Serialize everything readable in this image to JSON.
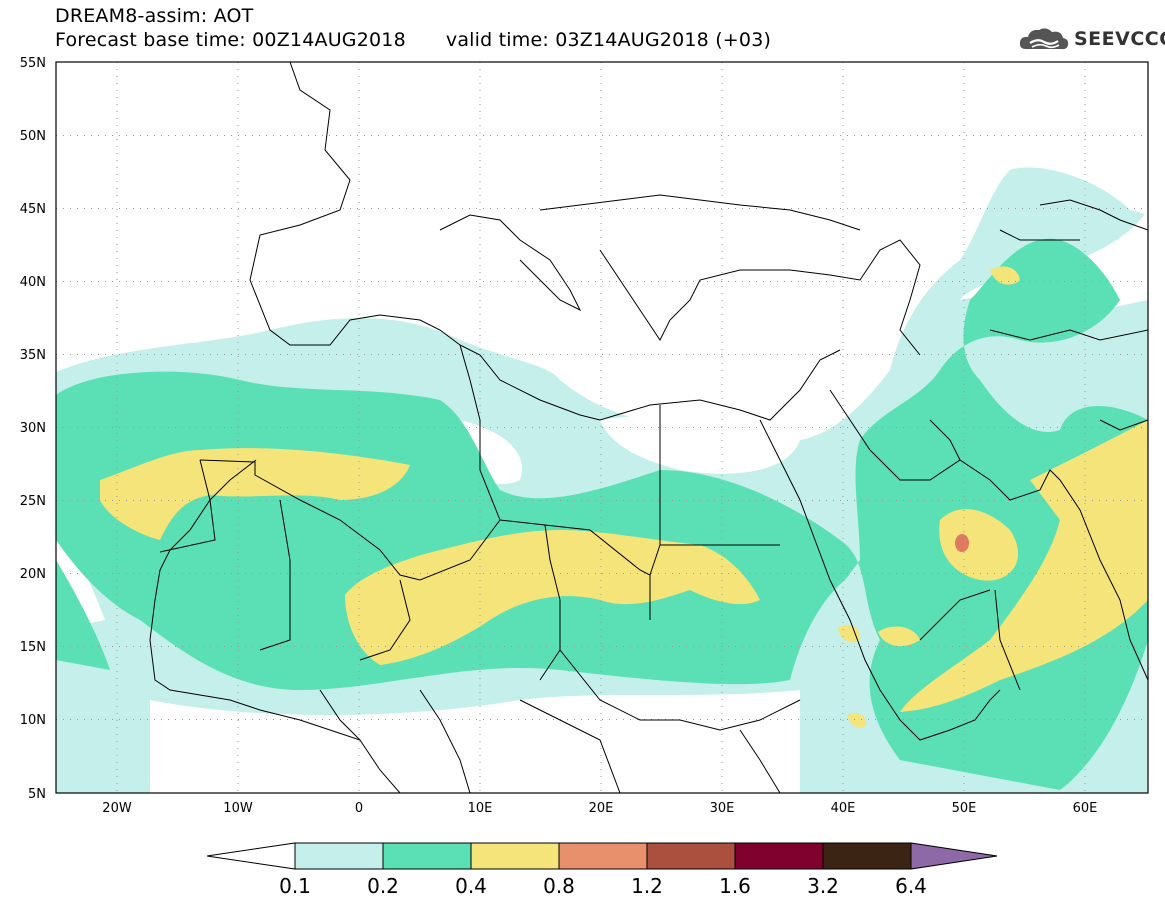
{
  "header": {
    "title": "DREAM8-assim: AOT",
    "forecast_base": "Forecast base time: 00Z14AUG2018",
    "valid_time": "valid time: 03Z14AUG2018 (+03)"
  },
  "logo": {
    "text": "SEEVCCC",
    "icon": "cloud-logo-icon"
  },
  "axes": {
    "lat_labels": [
      "55N",
      "50N",
      "45N",
      "40N",
      "35N",
      "30N",
      "25N",
      "20N",
      "15N",
      "10N",
      "5N"
    ],
    "lon_labels": [
      "20W",
      "10W",
      "0",
      "10E",
      "20E",
      "30E",
      "40E",
      "50E",
      "60E"
    ]
  },
  "colorbar": {
    "labels": [
      "0.1",
      "0.2",
      "0.4",
      "0.8",
      "1.2",
      "1.6",
      "3.2",
      "6.4"
    ],
    "colors": [
      "#ffffff",
      "#c4efea",
      "#5ae0b4",
      "#f5e479",
      "#e8906b",
      "#ab4f3e",
      "#80002e",
      "#3c2414",
      "#8e69a8"
    ]
  }
}
